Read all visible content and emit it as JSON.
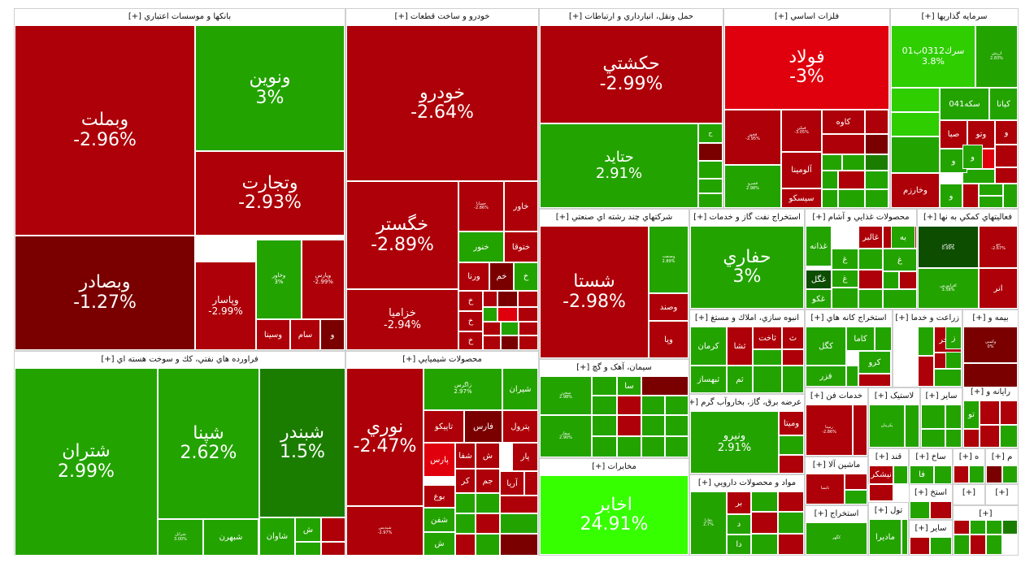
{
  "colors": {
    "dred": "#7a0000",
    "red": "#ad0008",
    "lred": "#e0000d",
    "green": "#23a300",
    "dgreen": "#1b7d00",
    "lgreen": "#2ece00",
    "bgreen": "#36ff00",
    "vdgreen": "#0d4d00"
  },
  "chart_data": {
    "type": "treemap",
    "sectors": [
      {
        "title": "بانکها و موسسات اعتباري [+]",
        "tiles": [
          {
            "symbol": "وبملت",
            "change": "-2.96%"
          },
          {
            "symbol": "ونوين",
            "change": "3%"
          },
          {
            "symbol": "وتجارت",
            "change": "-2.93%"
          },
          {
            "symbol": "وبصادر",
            "change": "-1.27%"
          },
          {
            "symbol": "وپاسار",
            "change": "-2.99%"
          },
          {
            "symbol": "وخاور",
            "change": "3%"
          },
          {
            "symbol": "وپارس",
            "change": "-2.99%"
          },
          {
            "symbol": "وسينا"
          },
          {
            "symbol": "سام"
          },
          {
            "symbol": "و"
          }
        ]
      },
      {
        "title": "خودرو و ساخت قطعات [+]",
        "tiles": [
          {
            "symbol": "خودرو",
            "change": "-2.64%"
          },
          {
            "symbol": "خگستر",
            "change": "-2.89%"
          },
          {
            "symbol": "خساپا",
            "change": "-2.86%"
          },
          {
            "symbol": "خاور"
          },
          {
            "symbol": "خنور"
          },
          {
            "symbol": "ختوقا"
          },
          {
            "symbol": "ورنا"
          },
          {
            "symbol": "خم"
          },
          {
            "symbol": "خ"
          },
          {
            "symbol": "خزاميا",
            "change": "-2.94%"
          },
          {
            "symbol": "خ"
          },
          {
            "symbol": "خ"
          },
          {
            "symbol": "خ"
          }
        ]
      },
      {
        "title": "حمل ونقل، انبارداري و ارتباطات [+]",
        "tiles": [
          {
            "symbol": "حکشتي",
            "change": "-2.99%"
          },
          {
            "symbol": "حتايد",
            "change": "2.91%"
          },
          {
            "symbol": "ح"
          }
        ]
      },
      {
        "title": "فلزات اساسي [+]",
        "tiles": [
          {
            "symbol": "فولاد",
            "change": "-3%"
          },
          {
            "symbol": "فخوز",
            "change": "-2.95%"
          },
          {
            "symbol": "فملي",
            "change": "-3.05%"
          },
          {
            "symbol": "كاوه"
          },
          {
            "symbol": "فسرو",
            "change": "2.98%"
          },
          {
            "symbol": "آلومينا"
          },
          {
            "symbol": "سيسکو"
          }
        ]
      },
      {
        "title": "سرمايه گذاريها [+]",
        "tiles": [
          {
            "symbol": "سرك0312ب01",
            "change": "3.8%"
          },
          {
            "symbol": "ارزش",
            "change": "2.83%"
          },
          {
            "symbol": "سکه041"
          },
          {
            "symbol": "کيانا"
          },
          {
            "symbol": "صبا"
          },
          {
            "symbol": "وتو"
          },
          {
            "symbol": "و"
          },
          {
            "symbol": "و"
          },
          {
            "symbol": "و"
          },
          {
            "symbol": "وخارزم"
          },
          {
            "symbol": "و"
          }
        ]
      },
      {
        "title": "شرکتهاي چند رشته اي صنعتي [+]",
        "tiles": [
          {
            "symbol": "شستا",
            "change": "-2.98%"
          },
          {
            "symbol": "وصنعت",
            "change": "2.89%"
          },
          {
            "symbol": "وصند"
          },
          {
            "symbol": "وپا"
          }
        ]
      },
      {
        "title": "استخراج نفت گاز و خدمات [+]",
        "tiles": [
          {
            "symbol": "حفاري",
            "change": "3%"
          }
        ]
      },
      {
        "title": "محصولات غذايي و آشام [+]",
        "tiles": [
          {
            "symbol": "غذانه"
          },
          {
            "symbol": "غالبر"
          },
          {
            "symbol": "غ"
          },
          {
            "symbol": "غ"
          },
          {
            "symbol": "غ"
          },
          {
            "symbol": "غگل"
          },
          {
            "symbol": "غکو"
          },
          {
            "symbol": "به"
          }
        ]
      },
      {
        "title": "فعاليتهاي کمکي به نها [+]",
        "tiles": [
          {
            "symbol": "وبورس",
            "change": "0.99%"
          },
          {
            "symbol": "ثنو",
            "change": "-2.67%"
          },
          {
            "symbol": "افرابورس",
            "change": "3.58%"
          },
          {
            "symbol": "انر"
          }
        ]
      },
      {
        "title": "رايانه و [+]",
        "tiles": [
          {
            "symbol": "تو"
          }
        ]
      },
      {
        "title": "انبوه سازي، املاك و مستغ [+]",
        "tiles": [
          {
            "symbol": "کرمان"
          },
          {
            "symbol": "ثشا"
          },
          {
            "symbol": "ثاخت"
          },
          {
            "symbol": "ث"
          },
          {
            "symbol": "ثبهساز"
          },
          {
            "symbol": "ثم"
          }
        ]
      },
      {
        "title": "استخراج کانه هاي [+]",
        "tiles": [
          {
            "symbol": "کگل"
          },
          {
            "symbol": "كاما"
          },
          {
            "symbol": "کرو"
          },
          {
            "symbol": "فزر"
          }
        ]
      },
      {
        "title": "زراعت و خدما [+]",
        "tiles": [
          {
            "symbol": "زفجر"
          },
          {
            "symbol": "ز"
          }
        ]
      },
      {
        "title": "بيمه و [+]",
        "tiles": [
          {
            "symbol": "وكمبي",
            "change": "0%"
          }
        ]
      },
      {
        "title": "سيمان، آهک و گچ [+]",
        "tiles": [
          {
            "symbol": "سخزر",
            "change": "2.98%"
          },
          {
            "symbol": "سا"
          },
          {
            "symbol": "سفار",
            "change": "2.90%"
          }
        ]
      },
      {
        "title": "عرضه برق، گاز، بخاروآب گرم [+]",
        "tiles": [
          {
            "symbol": "ونيرو",
            "change": "2.91%"
          },
          {
            "symbol": "وميتا"
          }
        ]
      },
      {
        "title": "خدمات فن [+]",
        "tiles": [
          {
            "symbol": "رمپنا",
            "change": "-2.86%"
          }
        ]
      },
      {
        "title": "لاستيک [+]",
        "tiles": [
          {
            "symbol": "پکرمان"
          }
        ]
      },
      {
        "title": "ساير [+]",
        "tiles": []
      },
      {
        "title": "ماشين آلا [+]",
        "tiles": [
          {
            "symbol": "تابسا"
          }
        ]
      },
      {
        "title": "قند [+]",
        "tiles": [
          {
            "symbol": "نيشکر"
          }
        ]
      },
      {
        "title": "ساخ [+]",
        "tiles": [
          {
            "symbol": "فا"
          }
        ]
      },
      {
        "title": "ه [+]",
        "tiles": []
      },
      {
        "title": "م [+]",
        "tiles": []
      },
      {
        "title": "مواد و محصولات دارويي [+]",
        "tiles": [
          {
            "symbol": "دفارا",
            "change": "2.7%"
          },
          {
            "symbol": "بر"
          },
          {
            "symbol": "د"
          },
          {
            "symbol": "دا"
          }
        ]
      },
      {
        "title": "استخراج [+]",
        "tiles": [
          {
            "symbol": "کگهر"
          }
        ]
      },
      {
        "title": "استخ [+]",
        "tiles": []
      },
      {
        "title": "تول [+]",
        "tiles": [
          {
            "symbol": "ماديرا"
          }
        ]
      },
      {
        "title": "ساير [+]",
        "tiles": []
      },
      {
        "title": "[+]",
        "tiles": []
      },
      {
        "title": "[+]",
        "tiles": []
      },
      {
        "title": "[+]",
        "tiles": []
      },
      {
        "title": "فراورده هاي نفتي، كك و سوخت هسته اي [+]",
        "tiles": [
          {
            "symbol": "شتران",
            "change": "2.99%"
          },
          {
            "symbol": "شپنا",
            "change": "2.62%"
          },
          {
            "symbol": "شبندر",
            "change": "1.5%"
          },
          {
            "symbol": "شرانل",
            "change": "3.00%"
          },
          {
            "symbol": "شبهرن"
          },
          {
            "symbol": "شاوان"
          },
          {
            "symbol": "ش"
          }
        ]
      },
      {
        "title": "محصولات شيميايي [+]",
        "tiles": [
          {
            "symbol": "نوري",
            "change": "-2.47%"
          },
          {
            "symbol": "زاگرس",
            "change": "2.97%"
          },
          {
            "symbol": "شيران"
          },
          {
            "symbol": "تاپيكو"
          },
          {
            "symbol": "فارس"
          },
          {
            "symbol": "پترول"
          },
          {
            "symbol": "شفا"
          },
          {
            "symbol": "ش"
          },
          {
            "symbol": "پار"
          },
          {
            "symbol": "پارس"
          },
          {
            "symbol": "جم"
          },
          {
            "symbol": "کر"
          },
          {
            "symbol": "آريا"
          },
          {
            "symbol": "بوع"
          },
          {
            "symbol": "شفن"
          },
          {
            "symbol": "ش"
          },
          {
            "symbol": "شپديس",
            "change": "-2.97%"
          }
        ]
      },
      {
        "title": "مخابرات [+]",
        "tiles": [
          {
            "symbol": "اخابر",
            "change": "24.91%"
          }
        ]
      }
    ]
  }
}
